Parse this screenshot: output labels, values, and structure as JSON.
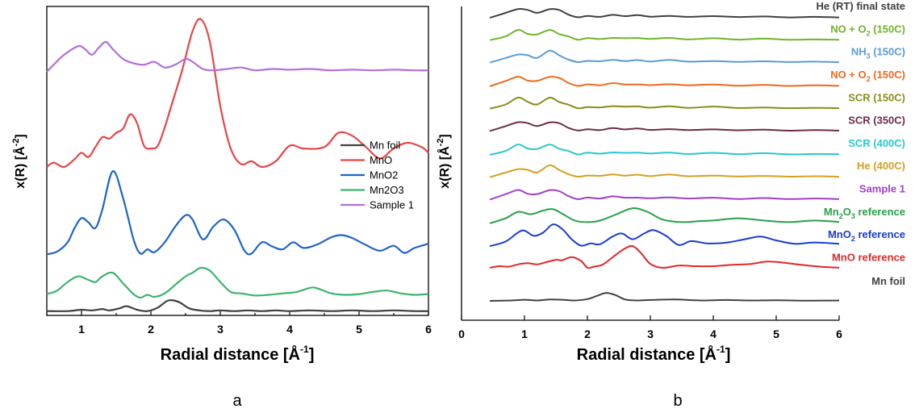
{
  "chart_data": [
    {
      "panel_label": "a",
      "type": "line",
      "xlabel": "Radial distance [Å",
      "xlabel_sup": "-1",
      "ylabel": "x(R) [Å",
      "ylabel_sup": "-2",
      "xlim": [
        0.5,
        6
      ],
      "xticks": [
        "1",
        "2",
        "3",
        "4",
        "5",
        "6"
      ],
      "legend_position": "right-middle",
      "series": [
        {
          "name": "Mn foil",
          "color": "#404040",
          "offset": 0,
          "x": [
            0.5,
            0.8,
            1.0,
            1.15,
            1.3,
            1.4,
            1.55,
            1.65,
            1.8,
            1.95,
            2.1,
            2.25,
            2.4,
            2.55,
            2.7,
            2.85,
            3.0,
            3.2,
            3.4,
            3.6,
            3.8,
            4.0,
            4.3,
            4.6,
            4.9,
            5.2,
            5.5,
            5.8,
            6.0
          ],
          "y": [
            0.01,
            0.01,
            0.03,
            0.02,
            0.04,
            0.02,
            0.05,
            0.08,
            0.03,
            0.01,
            0.06,
            0.16,
            0.14,
            0.05,
            0.02,
            0.01,
            0.02,
            0.01,
            0.02,
            0.01,
            0.02,
            0.01,
            0.02,
            0.01,
            0.02,
            0.01,
            0.02,
            0.01,
            0.01
          ]
        },
        {
          "name": "MnO",
          "color": "#e64646",
          "offset": 0,
          "x": [
            0.5,
            0.6,
            0.75,
            0.9,
            1.0,
            1.1,
            1.2,
            1.3,
            1.4,
            1.5,
            1.6,
            1.7,
            1.8,
            1.9,
            2.0,
            2.1,
            2.2,
            2.3,
            2.45,
            2.6,
            2.72,
            2.85,
            3.0,
            3.15,
            3.3,
            3.45,
            3.6,
            3.8,
            4.0,
            4.2,
            4.5,
            4.7,
            4.9,
            5.1,
            5.3,
            5.5,
            5.7,
            5.9,
            6.0
          ],
          "y": [
            2.04,
            2.1,
            2.04,
            2.15,
            2.24,
            2.18,
            2.32,
            2.46,
            2.44,
            2.52,
            2.58,
            2.78,
            2.66,
            2.34,
            2.3,
            2.34,
            2.6,
            2.92,
            3.4,
            3.95,
            4.12,
            3.8,
            2.9,
            2.3,
            2.08,
            2.12,
            2.04,
            2.12,
            2.34,
            2.3,
            2.32,
            2.52,
            2.48,
            2.32,
            2.16,
            2.3,
            2.38,
            2.32,
            2.24
          ]
        },
        {
          "name": "MnO2",
          "color": "#1e64c8",
          "offset": 0,
          "x": [
            0.5,
            0.65,
            0.8,
            0.9,
            1.0,
            1.1,
            1.2,
            1.3,
            1.45,
            1.6,
            1.75,
            1.85,
            1.95,
            2.05,
            2.2,
            2.35,
            2.5,
            2.6,
            2.75,
            2.9,
            3.05,
            3.2,
            3.35,
            3.45,
            3.6,
            3.75,
            3.9,
            4.05,
            4.2,
            4.4,
            4.6,
            4.75,
            4.9,
            5.1,
            5.3,
            5.5,
            5.65,
            5.8,
            6.0
          ],
          "y": [
            0.81,
            0.85,
            0.98,
            1.18,
            1.32,
            1.26,
            1.18,
            1.44,
            1.98,
            1.6,
            1.02,
            0.82,
            0.88,
            0.84,
            0.98,
            1.2,
            1.36,
            1.3,
            1.02,
            1.2,
            1.3,
            1.16,
            0.86,
            0.82,
            0.98,
            0.92,
            0.88,
            0.98,
            0.9,
            0.95,
            1.05,
            1.08,
            1.04,
            0.94,
            0.86,
            0.93,
            0.83,
            0.9,
            0.96
          ]
        },
        {
          "name": "Mn2O3",
          "color": "#3cb46e",
          "offset": 0,
          "x": [
            0.5,
            0.65,
            0.8,
            0.95,
            1.1,
            1.2,
            1.3,
            1.45,
            1.6,
            1.75,
            1.85,
            1.95,
            2.05,
            2.2,
            2.35,
            2.5,
            2.6,
            2.72,
            2.85,
            3.0,
            3.15,
            3.3,
            3.5,
            3.7,
            3.9,
            4.1,
            4.3,
            4.4,
            4.6,
            4.8,
            5.0,
            5.2,
            5.4,
            5.6,
            5.8,
            6.0
          ],
          "y": [
            0.25,
            0.3,
            0.42,
            0.5,
            0.45,
            0.42,
            0.5,
            0.55,
            0.4,
            0.25,
            0.2,
            0.24,
            0.21,
            0.26,
            0.38,
            0.5,
            0.55,
            0.62,
            0.58,
            0.42,
            0.28,
            0.26,
            0.23,
            0.24,
            0.26,
            0.28,
            0.34,
            0.33,
            0.26,
            0.24,
            0.25,
            0.28,
            0.3,
            0.26,
            0.24,
            0.25
          ]
        },
        {
          "name": "Sample 1",
          "color": "#b46edc",
          "offset": 0,
          "x": [
            0.5,
            0.6,
            0.75,
            0.95,
            1.05,
            1.15,
            1.25,
            1.35,
            1.45,
            1.6,
            1.75,
            1.9,
            2.05,
            2.2,
            2.35,
            2.5,
            2.6,
            2.75,
            2.9,
            3.1,
            3.3,
            3.5,
            3.75,
            4.0,
            4.3,
            4.6,
            4.9,
            5.2,
            5.5,
            5.8,
            6.0
          ],
          "y": [
            3.38,
            3.48,
            3.62,
            3.74,
            3.7,
            3.62,
            3.72,
            3.8,
            3.7,
            3.56,
            3.5,
            3.48,
            3.52,
            3.44,
            3.48,
            3.56,
            3.52,
            3.42,
            3.4,
            3.42,
            3.44,
            3.4,
            3.42,
            3.41,
            3.42,
            3.4,
            3.41,
            3.4,
            3.41,
            3.4,
            3.4
          ]
        }
      ]
    },
    {
      "panel_label": "b",
      "type": "line",
      "xlabel": "Radial distance [Å",
      "xlabel_sup": "-1",
      "ylabel": "x(R) [Å",
      "ylabel_sup": "-2",
      "xlim": [
        0,
        6
      ],
      "xticks": [
        "0",
        "1",
        "2",
        "3",
        "4",
        "5",
        "6"
      ],
      "series": [
        {
          "name": "He (RT) final state",
          "color": "#404040",
          "baseline": 13,
          "shape": "sample"
        },
        {
          "name": "NO + O2 (150C)",
          "label_main": "NO + O",
          "label_sub": "2",
          "label_tail": " (150C)",
          "color": "#6fb42c",
          "baseline": 12,
          "shape": "sample"
        },
        {
          "name": "NH3 (150C)",
          "label_main": "NH",
          "label_sub": "3",
          "label_tail": " (150C)",
          "color": "#5b9bd5",
          "baseline": 11,
          "shape": "sample"
        },
        {
          "name": "NO + O2 (150C) ",
          "label_main": "NO + O",
          "label_sub": "2",
          "label_tail": " (150C)",
          "color": "#ed6a1e",
          "baseline": 10,
          "shape": "sample"
        },
        {
          "name": "SCR (150C)",
          "color": "#8c8c1a",
          "baseline": 9,
          "shape": "sample"
        },
        {
          "name": "SCR (350C)",
          "color": "#6e2a4a",
          "baseline": 8,
          "shape": "sample"
        },
        {
          "name": "SCR (400C)",
          "color": "#28c8d0",
          "baseline": 7,
          "shape": "sample"
        },
        {
          "name": "He (400C)",
          "color": "#d4a020",
          "baseline": 6,
          "shape": "sample"
        },
        {
          "name": "Sample 1",
          "color": "#a040c8",
          "baseline": 5,
          "shape": "sample"
        },
        {
          "name": "Mn2O3 reference",
          "label_main": "Mn",
          "label_sub": "2",
          "label_tail": "O",
          "label_sub2": "3",
          "label_tail2": " reference",
          "color": "#28a048",
          "baseline": 4,
          "shape": "mn2o3"
        },
        {
          "name": "MnO2 reference",
          "label_main": "MnO",
          "label_sub": "2",
          "label_tail": " reference",
          "color": "#1a3cd0",
          "baseline": 3,
          "shape": "mno2"
        },
        {
          "name": "MnO reference",
          "color": "#e02828",
          "baseline": 2,
          "shape": "mno"
        },
        {
          "name": "Mn foil",
          "color": "#404040",
          "baseline": 0.6,
          "shape": "foil"
        }
      ]
    }
  ],
  "captions": {
    "a": "a",
    "b": "b"
  }
}
